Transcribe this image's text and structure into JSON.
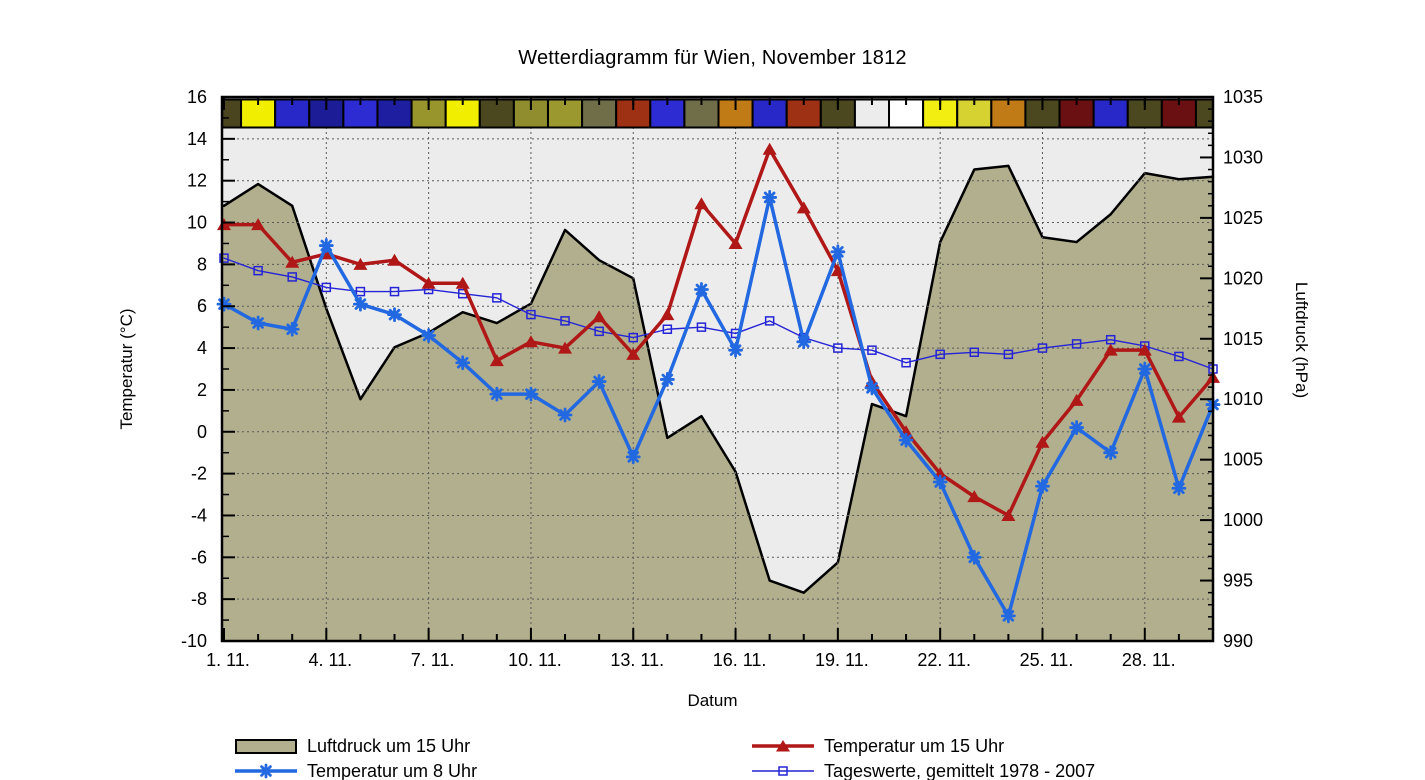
{
  "title": "Wetterdiagramm für Wien, November 1812",
  "colors": {
    "plot_bg": "#ececec",
    "grid": "#5a5a5a",
    "frame": "#000000",
    "area_fill": "#b2af8e",
    "area_edge": "#000000",
    "temp15": "#b01717",
    "temp8": "#2268e0",
    "avg": "#2424d6"
  },
  "chart_data": {
    "type": "line",
    "title": "Wetterdiagramm für Wien, November 1812",
    "x_label": "Datum",
    "x_days": 30,
    "x_tick_days": [
      1,
      4,
      7,
      10,
      13,
      16,
      19,
      22,
      25,
      28
    ],
    "x_tick_labels": [
      "1. 11.",
      "4. 11.",
      "7. 11.",
      "10. 11.",
      "13. 11.",
      "16. 11.",
      "19. 11.",
      "22. 11.",
      "25. 11.",
      "28. 11."
    ],
    "y_left": {
      "label": "Temperatur (°C)",
      "min": -10,
      "max": 16,
      "tick_step": 2,
      "tick_labels": [
        "16",
        "14",
        "12",
        "10",
        "8",
        "6",
        "4",
        "2",
        "0",
        "-2",
        "-4",
        "-6",
        "-8",
        "-10"
      ]
    },
    "y_right": {
      "label": "Luftdruck (hPa)",
      "min": 990,
      "max": 1035,
      "tick_step": 5,
      "tick_labels": [
        "1035",
        "1030",
        "1025",
        "1020",
        "1015",
        "1010",
        "1005",
        "1000",
        "995",
        "990"
      ]
    },
    "grid": true,
    "legend_position": "below",
    "series": [
      {
        "name": "Luftdruck um 15 Uhr",
        "type": "area",
        "axis": "right",
        "marker": "none",
        "color_key": "area_fill",
        "values": [
          1026.0,
          1027.8,
          1026.0,
          1017.5,
          1010.0,
          1014.3,
          1015.5,
          1017.2,
          1016.3,
          1017.9,
          1024.0,
          1021.5,
          1020.0,
          1006.8,
          1008.6,
          1004.0,
          995.0,
          994.0,
          996.5,
          1009.6,
          1008.6,
          1023.0,
          1029.0,
          1029.3,
          1023.4,
          1023.0,
          1025.3,
          1028.7,
          1028.2,
          1028.4
        ]
      },
      {
        "name": "Temperatur um 15 Uhr",
        "type": "line",
        "axis": "left",
        "marker": "triangle",
        "color_key": "temp15",
        "values": [
          9.9,
          9.9,
          8.1,
          8.5,
          8.0,
          8.2,
          7.1,
          7.1,
          3.4,
          4.3,
          4.0,
          5.5,
          3.7,
          5.6,
          10.9,
          9.0,
          13.5,
          10.7,
          7.7,
          2.4,
          0.0,
          -2.0,
          -3.1,
          -4.0,
          -0.5,
          1.5,
          3.9,
          3.9,
          0.7,
          2.6
        ]
      },
      {
        "name": "Temperatur um 8 Uhr",
        "type": "line",
        "axis": "left",
        "marker": "asterisk",
        "color_key": "temp8",
        "values": [
          6.1,
          5.2,
          4.9,
          8.9,
          6.1,
          5.6,
          4.6,
          3.3,
          1.8,
          1.8,
          0.8,
          2.4,
          -1.2,
          2.5,
          6.8,
          3.9,
          11.2,
          4.3,
          8.6,
          2.1,
          -0.4,
          -2.4,
          -6.0,
          -8.8,
          -2.6,
          0.2,
          -1.0,
          3.0,
          -2.7,
          1.3
        ]
      },
      {
        "name": "Tageswerte, gemittelt 1978 - 2007",
        "type": "line",
        "axis": "left",
        "marker": "open-square",
        "color_key": "avg",
        "values": [
          8.3,
          7.7,
          7.4,
          6.9,
          6.7,
          6.7,
          6.8,
          6.6,
          6.4,
          5.6,
          5.3,
          4.8,
          4.5,
          4.9,
          5.0,
          4.7,
          5.3,
          4.5,
          4.0,
          3.9,
          3.3,
          3.7,
          3.8,
          3.7,
          4.0,
          4.2,
          4.4,
          4.1,
          3.6,
          3.0
        ]
      }
    ],
    "day_strip_colors": [
      "#4a441f",
      "#f2ee00",
      "#2828c8",
      "#1c1c96",
      "#2c2cd2",
      "#1e1ea0",
      "#97952c",
      "#f2ee00",
      "#4b481f",
      "#8f8d2e",
      "#9a982f",
      "#6f6e49",
      "#9e3113",
      "#2c2cd2",
      "#6f6e49",
      "#c17b16",
      "#2828c8",
      "#9e3113",
      "#4b481f",
      "#ececec",
      "#ffffff",
      "#f2ee11",
      "#d6d232",
      "#c17b16",
      "#4b481f",
      "#6a1012",
      "#2828c8",
      "#4b481f",
      "#6a1012",
      "#4b481f"
    ]
  },
  "legend": {
    "items": [
      {
        "label": "Luftdruck um 15 Uhr",
        "swatch": "area-box",
        "color_key": "area_fill"
      },
      {
        "label": "Temperatur um 8 Uhr",
        "swatch": "line-asterisk",
        "color_key": "temp8"
      },
      {
        "label": "Temperatur um 15 Uhr",
        "swatch": "line-triangle",
        "color_key": "temp15"
      },
      {
        "label": "Tageswerte, gemittelt 1978 - 2007",
        "swatch": "line-square",
        "color_key": "avg"
      }
    ]
  }
}
